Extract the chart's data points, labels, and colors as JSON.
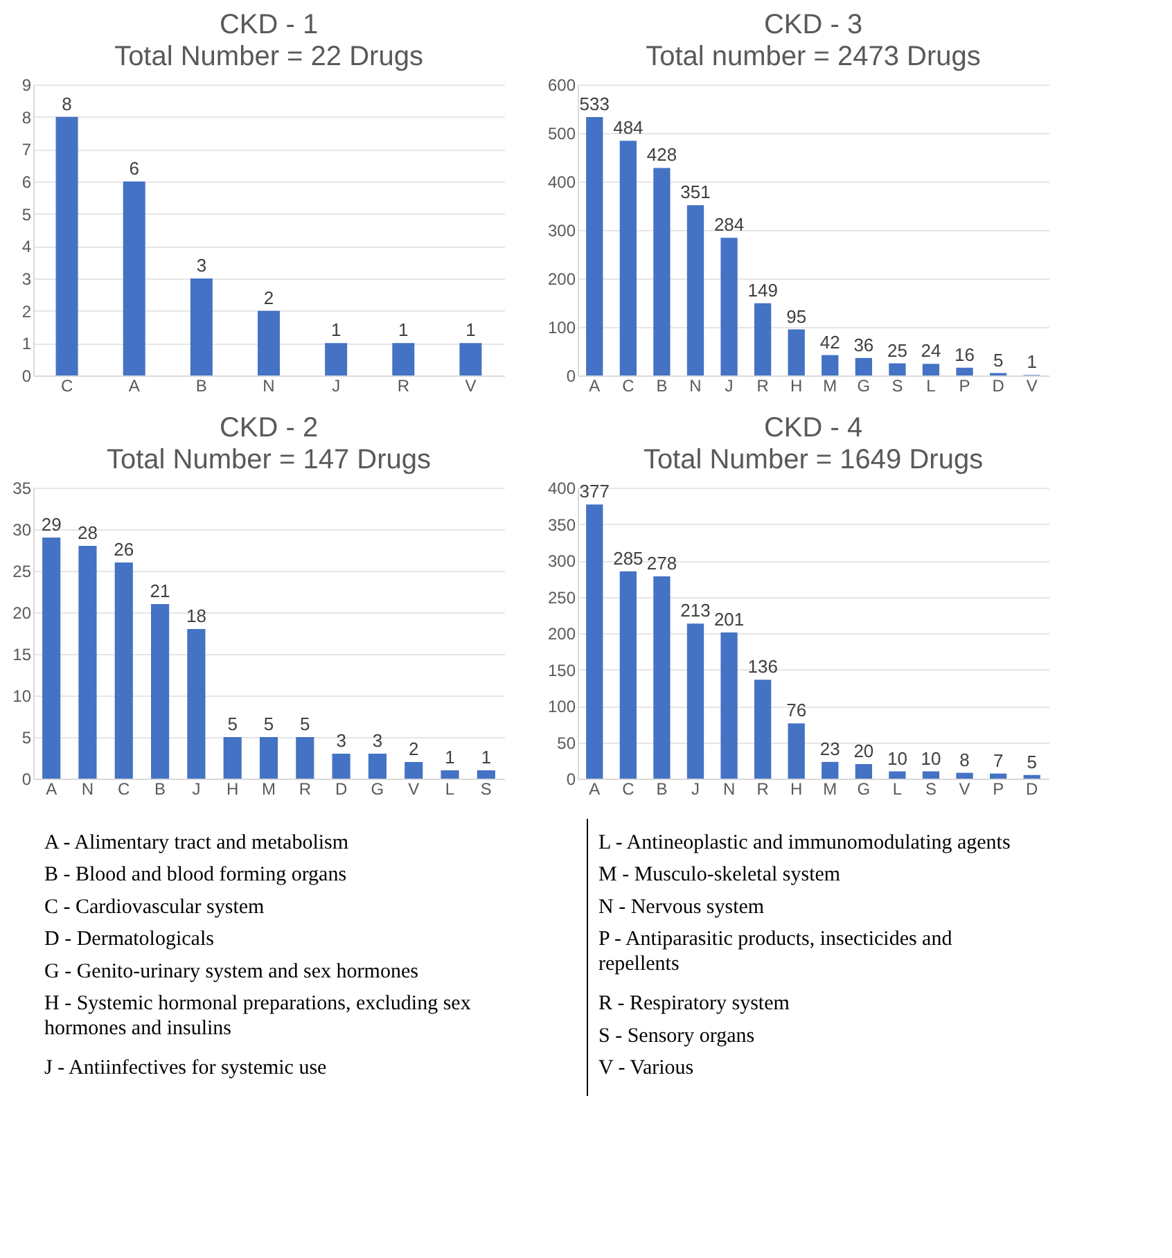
{
  "chart_data": [
    {
      "type": "bar",
      "title": "CKD  - 1",
      "subtitle": "Total Number = 22 Drugs",
      "categories": [
        "C",
        "A",
        "B",
        "N",
        "J",
        "R",
        "V"
      ],
      "values": [
        8,
        6,
        3,
        2,
        1,
        1,
        1
      ],
      "color": "#4472c4",
      "ylim": [
        0,
        9
      ],
      "yticks": [
        0,
        1,
        2,
        3,
        4,
        5,
        6,
        7,
        8,
        9
      ],
      "grid": "y",
      "data_labels": true
    },
    {
      "type": "bar",
      "title": "CKD - 3",
      "subtitle": "Total number = 2473 Drugs",
      "categories": [
        "A",
        "C",
        "B",
        "N",
        "J",
        "R",
        "H",
        "M",
        "G",
        "S",
        "L",
        "P",
        "D",
        "V"
      ],
      "values": [
        533,
        484,
        428,
        351,
        284,
        149,
        95,
        42,
        36,
        25,
        24,
        16,
        5,
        1
      ],
      "color": "#4472c4",
      "ylim": [
        0,
        600
      ],
      "yticks": [
        0,
        100,
        200,
        300,
        400,
        500,
        600
      ],
      "grid": "y",
      "data_labels": true
    },
    {
      "type": "bar",
      "title": "CKD - 2",
      "subtitle": "Total Number = 147 Drugs",
      "categories": [
        "A",
        "N",
        "C",
        "B",
        "J",
        "H",
        "M",
        "R",
        "D",
        "G",
        "V",
        "L",
        "S"
      ],
      "values": [
        29,
        28,
        26,
        21,
        18,
        5,
        5,
        5,
        3,
        3,
        2,
        1,
        1
      ],
      "color": "#4472c4",
      "ylim": [
        0,
        35
      ],
      "yticks": [
        0,
        5,
        10,
        15,
        20,
        25,
        30,
        35
      ],
      "grid": "y",
      "data_labels": true
    },
    {
      "type": "bar",
      "title": "CKD - 4",
      "subtitle": "Total Number = 1649 Drugs",
      "categories": [
        "A",
        "C",
        "B",
        "J",
        "N",
        "R",
        "H",
        "M",
        "G",
        "L",
        "S",
        "V",
        "P",
        "D"
      ],
      "values": [
        377,
        285,
        278,
        213,
        201,
        136,
        76,
        23,
        20,
        10,
        10,
        8,
        7,
        5
      ],
      "color": "#4472c4",
      "ylim": [
        0,
        400
      ],
      "yticks": [
        0,
        50,
        100,
        150,
        200,
        250,
        300,
        350,
        400
      ],
      "grid": "y",
      "data_labels": true
    },
    {
      "type": "other",
      "annotations": [
        "A - Alimentary tract and metabolism",
        "B - Blood and blood forming organs",
        "C - Cardiovascular system",
        "D - Dermatologicals",
        "G - Genito-urinary system and sex hormones",
        "H - Systemic hormonal preparations, excluding sex hormones and insulins",
        "J - Antiinfectives for systemic use",
        "L - Antineoplastic and immunomodulating agents",
        "M - Musculo-skeletal system",
        "N - Nervous system",
        "P - Antiparasitic products, insecticides and repellents",
        "R - Respiratory system",
        "S - Sensory organs",
        "V - Various"
      ]
    }
  ]
}
